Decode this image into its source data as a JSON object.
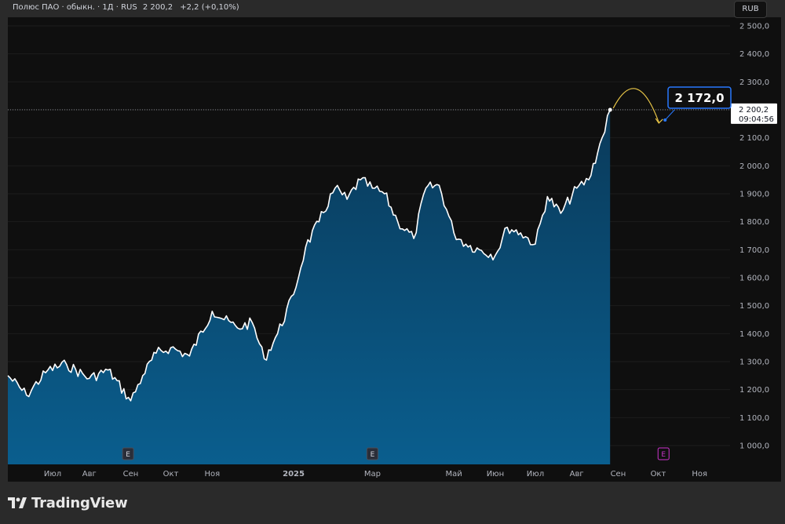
{
  "header": {
    "symbol": "Полюс ПАО · обыкн. · 1Д · RUS",
    "last": "2 200,2",
    "change": "+2,2 (+0,10%)"
  },
  "currency_button": "RUB",
  "price_label": {
    "value": "2 200,2",
    "time": "09:04:56"
  },
  "forecast_label": "2 172,0",
  "logo_text": "TradingView",
  "earnings_markers": [
    {
      "date": "2024-08-30",
      "label": "E",
      "style": "past"
    },
    {
      "date": "2025-03-01",
      "label": "E",
      "style": "past"
    },
    {
      "date": "2025-10-05",
      "label": "E",
      "style": "upcoming"
    }
  ],
  "colors": {
    "background": "#0f0f0f",
    "line": "#ffffff",
    "fill_top": "#0a3a5a",
    "fill_bottom": "#0a5e8e",
    "label_bg": "#2962ff",
    "forecast_arrow": "#e8c547",
    "earnings_upcoming": "#cc33cc"
  },
  "chart_data": {
    "type": "area",
    "xlabels": [
      "Июл",
      "Авг",
      "Сен",
      "Окт",
      "Ноя",
      "2025",
      "Мар",
      "Май",
      "Июн",
      "Июл",
      "Авг",
      "Сен",
      "Окт",
      "Ноя"
    ],
    "yticks": [
      "2 500,0",
      "2 400,0",
      "2 300,0",
      "2 200,0",
      "2 100,0",
      "2 000,0",
      "1 900,0",
      "1 800,0",
      "1 700,0",
      "1 600,0",
      "1 500,0",
      "1 400,0",
      "1 300,0",
      "1 200,0",
      "1 100,0",
      "1 000,0"
    ],
    "ylim": [
      950,
      2550
    ],
    "dates": [
      "2024-06-01",
      "2024-06-15",
      "2024-07-01",
      "2024-07-15",
      "2024-08-01",
      "2024-08-15",
      "2024-09-01",
      "2024-09-10",
      "2024-09-20",
      "2024-10-01",
      "2024-10-15",
      "2024-11-01",
      "2024-11-10",
      "2024-11-20",
      "2024-12-01",
      "2024-12-10",
      "2024-12-20",
      "2025-01-01",
      "2025-01-10",
      "2025-01-20",
      "2025-02-01",
      "2025-02-10",
      "2025-02-20",
      "2025-03-01",
      "2025-03-10",
      "2025-03-20",
      "2025-04-01",
      "2025-04-10",
      "2025-04-20",
      "2025-05-01",
      "2025-05-10",
      "2025-05-20",
      "2025-06-01",
      "2025-06-10",
      "2025-06-20",
      "2025-07-01",
      "2025-07-10",
      "2025-07-20",
      "2025-08-01",
      "2025-08-10",
      "2025-08-20",
      "2025-08-26"
    ],
    "values": [
      1250,
      1180,
      1270,
      1290,
      1240,
      1270,
      1160,
      1250,
      1330,
      1350,
      1320,
      1480,
      1450,
      1420,
      1440,
      1310,
      1400,
      1540,
      1710,
      1800,
      1920,
      1880,
      1950,
      1920,
      1900,
      1800,
      1740,
      1920,
      1930,
      1760,
      1720,
      1700,
      1680,
      1780,
      1760,
      1720,
      1890,
      1830,
      1920,
      1950,
      2100,
      2200
    ],
    "forecast": {
      "date": "2025-10-05",
      "value": 2172
    }
  }
}
